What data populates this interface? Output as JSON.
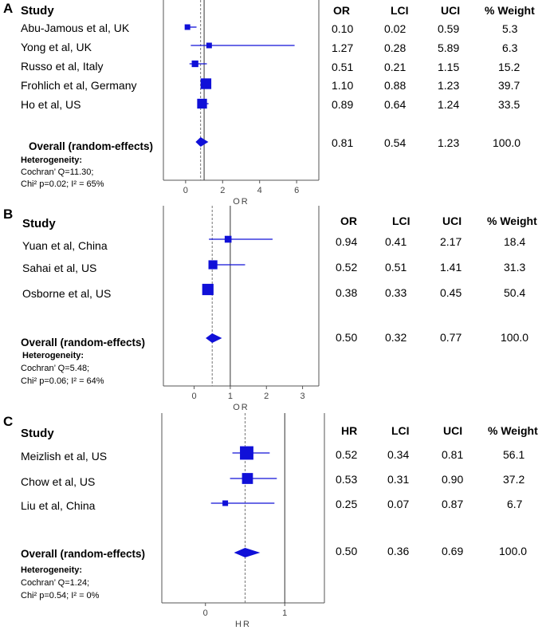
{
  "chart_data": [
    {
      "panel": "A",
      "type": "forest",
      "effect_label": "OR",
      "xlim": [
        -1.2,
        7.2
      ],
      "ticks": [
        0,
        2,
        4,
        6
      ],
      "null_line": 1,
      "overall_line": 0.81,
      "study_header": "Study",
      "columns": [
        "OR",
        "LCI",
        "UCI",
        "% Weight"
      ],
      "studies": [
        {
          "name": "Abu-Jamous et al, UK",
          "est": 0.1,
          "lci": 0.02,
          "uci": 0.59,
          "weight": 5.3,
          "est_text": "0.10",
          "lci_text": "0.02",
          "uci_text": "0.59",
          "weight_text": "5.3"
        },
        {
          "name": "Yong et al, UK",
          "est": 1.27,
          "lci": 0.28,
          "uci": 5.89,
          "weight": 6.3,
          "est_text": "1.27",
          "lci_text": "0.28",
          "uci_text": "5.89",
          "weight_text": "6.3"
        },
        {
          "name": "Russo et al, Italy",
          "est": 0.51,
          "lci": 0.21,
          "uci": 1.15,
          "weight": 15.2,
          "est_text": "0.51",
          "lci_text": "0.21",
          "uci_text": "1.15",
          "weight_text": "15.2"
        },
        {
          "name": "Frohlich et al, Germany",
          "est": 1.1,
          "lci": 0.88,
          "uci": 1.23,
          "weight": 39.7,
          "est_text": "1.10",
          "lci_text": "0.88",
          "uci_text": "1.23",
          "weight_text": "39.7"
        },
        {
          "name": "Ho et al, US",
          "est": 0.89,
          "lci": 0.64,
          "uci": 1.24,
          "weight": 33.5,
          "est_text": "0.89",
          "lci_text": "0.64",
          "uci_text": "1.24",
          "weight_text": "33.5"
        }
      ],
      "overall": {
        "label": "Overall (random-effects)",
        "est": 0.81,
        "lci": 0.54,
        "uci": 1.23,
        "est_text": "0.81",
        "lci_text": "0.54",
        "uci_text": "1.23",
        "weight_text": "100.0"
      },
      "heterogeneity": {
        "title": "Heterogeneity:",
        "line1": "Cochran’ Q=11.30;",
        "line2": "Chi² p=0.02; I² = 65%"
      }
    },
    {
      "panel": "B",
      "type": "forest",
      "effect_label": "OR",
      "xlim": [
        -0.85,
        3.45
      ],
      "ticks": [
        0,
        1,
        2,
        3
      ],
      "null_line": 1,
      "overall_line": 0.5,
      "study_header": "Study",
      "columns": [
        "OR",
        "LCI",
        "UCI",
        "% Weight"
      ],
      "studies": [
        {
          "name": "Yuan et al, China",
          "est": 0.94,
          "lci": 0.41,
          "uci": 2.17,
          "weight": 18.4,
          "est_text": "0.94",
          "lci_text": "0.41",
          "uci_text": "2.17",
          "weight_text": "18.4"
        },
        {
          "name": "Sahai et al, US",
          "est": 0.52,
          "lci": 0.51,
          "uci": 1.41,
          "weight": 31.3,
          "est_text": "0.52",
          "lci_text": "0.51",
          "uci_text": "1.41",
          "weight_text": "31.3"
        },
        {
          "name": "Osborne et al, US",
          "est": 0.38,
          "lci": 0.33,
          "uci": 0.45,
          "weight": 50.4,
          "est_text": "0.38",
          "lci_text": "0.33",
          "uci_text": "0.45",
          "weight_text": "50.4"
        }
      ],
      "overall": {
        "label": "Overall (random-effects)",
        "est": 0.5,
        "lci": 0.32,
        "uci": 0.77,
        "est_text": "0.50",
        "lci_text": "0.32",
        "uci_text": "0.77",
        "weight_text": "100.0"
      },
      "heterogeneity": {
        "title": "Heterogeneity:",
        "line1": "Cochran’ Q=5.48;",
        "line2": "Chi² p=0.06; I² = 64%"
      }
    },
    {
      "panel": "C",
      "type": "forest",
      "effect_label": "HR",
      "xlim": [
        -0.55,
        1.5
      ],
      "ticks": [
        0,
        1
      ],
      "null_line": 1,
      "overall_line": 0.5,
      "study_header": "Study",
      "columns": [
        "HR",
        "LCI",
        "UCI",
        "% Weight"
      ],
      "studies": [
        {
          "name": "Meizlish et al, US",
          "est": 0.52,
          "lci": 0.34,
          "uci": 0.81,
          "weight": 56.1,
          "est_text": "0.52",
          "lci_text": "0.34",
          "uci_text": "0.81",
          "weight_text": "56.1"
        },
        {
          "name": "Chow et al, US",
          "est": 0.53,
          "lci": 0.31,
          "uci": 0.9,
          "weight": 37.2,
          "est_text": "0.53",
          "lci_text": "0.31",
          "uci_text": "0.90",
          "weight_text": "37.2"
        },
        {
          "name": "Liu et al, China",
          "est": 0.25,
          "lci": 0.07,
          "uci": 0.87,
          "weight": 6.7,
          "est_text": "0.25",
          "lci_text": "0.07",
          "uci_text": "0.87",
          "weight_text": "6.7"
        }
      ],
      "overall": {
        "label": "Overall (random-effects)",
        "est": 0.5,
        "lci": 0.36,
        "uci": 0.69,
        "est_text": "0.50",
        "lci_text": "0.36",
        "uci_text": "0.69",
        "weight_text": "100.0"
      },
      "heterogeneity": {
        "title": "Heterogeneity:",
        "line1": "Cochran’ Q=1.24;",
        "line2": "Chi² p=0.54; I² = 0%"
      }
    }
  ],
  "colors": {
    "marker": "#1010d8",
    "axis": "#555555",
    "null_line": "#333333",
    "overall_line": "#777777"
  }
}
